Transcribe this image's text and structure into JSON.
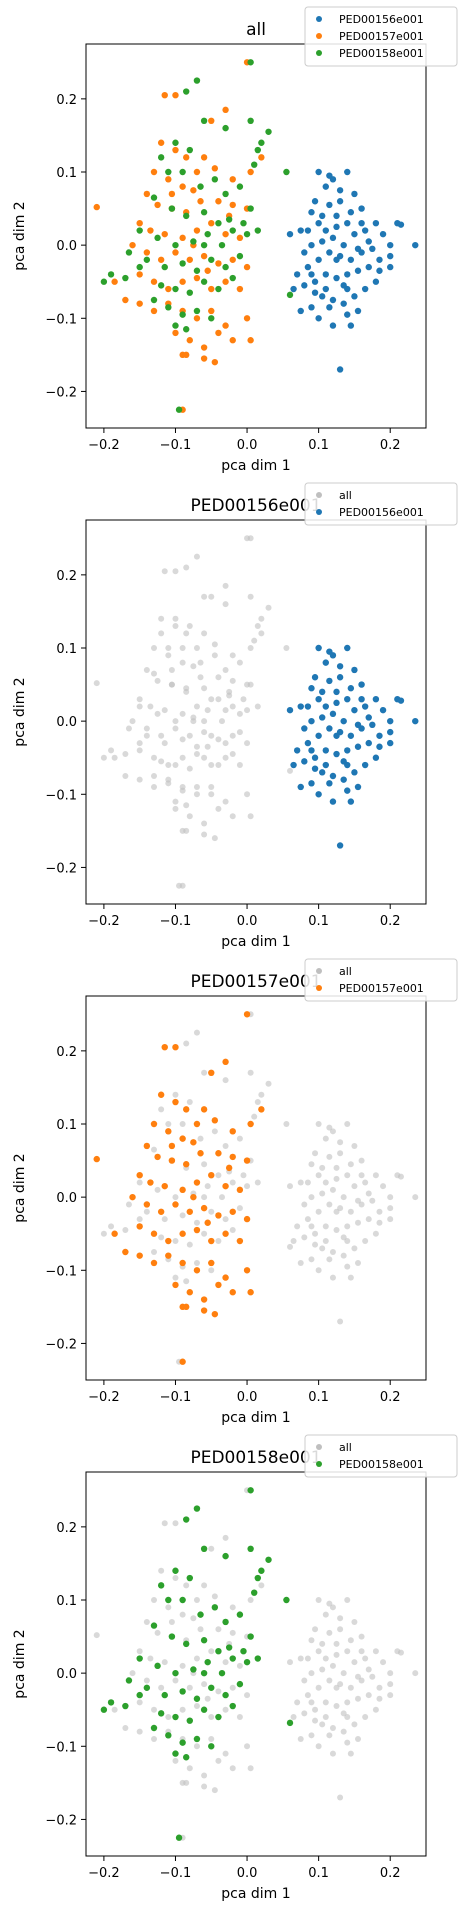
{
  "chart_data": [
    {
      "type": "scatter",
      "title": "all",
      "xlabel": "pca dim 1",
      "ylabel": "pca dim 2",
      "xlim": [
        -0.225,
        0.25
      ],
      "ylim": [
        -0.25,
        0.275
      ],
      "xticks": [
        "−0.2",
        "−0.1",
        "0.0",
        "0.1",
        "0.2"
      ],
      "yticks": [
        "−0.2",
        "−0.1",
        "0.0",
        "0.1",
        "0.2"
      ],
      "legend": {
        "location": "top-right",
        "entries": [
          "PED00156e001",
          "PED00157e001",
          "PED00158e001"
        ]
      },
      "highlight": "all"
    },
    {
      "type": "scatter",
      "title": "PED00156e001",
      "xlabel": "pca dim 1",
      "ylabel": "pca dim 2",
      "xlim": [
        -0.225,
        0.25
      ],
      "ylim": [
        -0.25,
        0.275
      ],
      "xticks": [
        "−0.2",
        "−0.1",
        "0.0",
        "0.1",
        "0.2"
      ],
      "yticks": [
        "−0.2",
        "−0.1",
        "0.0",
        "0.1",
        "0.2"
      ],
      "legend": {
        "location": "top-right",
        "entries": [
          "all",
          "PED00156e001"
        ]
      },
      "highlight": "PED00156e001"
    },
    {
      "type": "scatter",
      "title": "PED00157e001",
      "xlabel": "pca dim 1",
      "ylabel": "pca dim 2",
      "xlim": [
        -0.225,
        0.25
      ],
      "ylim": [
        -0.25,
        0.275
      ],
      "xticks": [
        "−0.2",
        "−0.1",
        "0.0",
        "0.1",
        "0.2"
      ],
      "yticks": [
        "−0.2",
        "−0.1",
        "0.0",
        "0.1",
        "0.2"
      ],
      "legend": {
        "location": "top-right",
        "entries": [
          "all",
          "PED00157e001"
        ]
      },
      "highlight": "PED00157e001"
    },
    {
      "type": "scatter",
      "title": "PED00158e001",
      "xlabel": "pca dim 1",
      "ylabel": "pca dim 2",
      "xlim": [
        -0.225,
        0.25
      ],
      "ylim": [
        -0.25,
        0.275
      ],
      "xticks": [
        "−0.2",
        "−0.1",
        "0.0",
        "0.1",
        "0.2"
      ],
      "yticks": [
        "−0.2",
        "−0.1",
        "0.0",
        "0.1",
        "0.2"
      ],
      "legend": {
        "location": "top-right",
        "entries": [
          "all",
          "PED00158e001"
        ]
      },
      "highlight": "PED00158e001"
    }
  ],
  "series": [
    {
      "name": "PED00156e001",
      "color": "#1f77b4",
      "points": [
        [
          0.1,
          0.1
        ],
        [
          0.12,
          0.09
        ],
        [
          0.14,
          0.1
        ],
        [
          0.11,
          0.08
        ],
        [
          0.095,
          0.06
        ],
        [
          0.115,
          0.055
        ],
        [
          0.13,
          0.06
        ],
        [
          0.15,
          0.07
        ],
        [
          0.16,
          0.05
        ],
        [
          0.125,
          0.04
        ],
        [
          0.14,
          0.03
        ],
        [
          0.1,
          0.03
        ],
        [
          0.085,
          0.02
        ],
        [
          0.11,
          0.02
        ],
        [
          0.075,
          0.02
        ],
        [
          0.06,
          0.015
        ],
        [
          0.09,
          0.0
        ],
        [
          0.105,
          0.005
        ],
        [
          0.12,
          0.01
        ],
        [
          0.135,
          0.0
        ],
        [
          0.15,
          0.015
        ],
        [
          0.165,
          0.02
        ],
        [
          0.18,
          0.03
        ],
        [
          0.2,
          0.0
        ],
        [
          0.21,
          0.03
        ],
        [
          0.215,
          0.028
        ],
        [
          0.235,
          0.0
        ],
        [
          0.19,
          0.015
        ],
        [
          0.175,
          -0.005
        ],
        [
          0.16,
          -0.01
        ],
        [
          0.145,
          -0.02
        ],
        [
          0.13,
          -0.015
        ],
        [
          0.115,
          -0.01
        ],
        [
          0.1,
          -0.02
        ],
        [
          0.085,
          -0.03
        ],
        [
          0.07,
          -0.04
        ],
        [
          0.065,
          -0.06
        ],
        [
          0.08,
          -0.055
        ],
        [
          0.095,
          -0.05
        ],
        [
          0.11,
          -0.04
        ],
        [
          0.125,
          -0.045
        ],
        [
          0.14,
          -0.04
        ],
        [
          0.155,
          -0.035
        ],
        [
          0.17,
          -0.03
        ],
        [
          0.185,
          -0.02
        ],
        [
          0.2,
          -0.015
        ],
        [
          0.18,
          -0.05
        ],
        [
          0.165,
          -0.06
        ],
        [
          0.15,
          -0.07
        ],
        [
          0.135,
          -0.08
        ],
        [
          0.12,
          -0.075
        ],
        [
          0.105,
          -0.07
        ],
        [
          0.09,
          -0.085
        ],
        [
          0.075,
          -0.09
        ],
        [
          0.1,
          -0.1
        ],
        [
          0.12,
          -0.11
        ],
        [
          0.14,
          -0.095
        ],
        [
          0.155,
          -0.09
        ],
        [
          0.145,
          -0.11
        ],
        [
          0.13,
          -0.17
        ],
        [
          0.09,
          -0.04
        ],
        [
          0.11,
          -0.06
        ],
        [
          0.125,
          -0.02
        ],
        [
          0.14,
          -0.06
        ],
        [
          0.16,
          0.03
        ],
        [
          0.145,
          0.045
        ],
        [
          0.105,
          0.04
        ],
        [
          0.09,
          0.045
        ],
        [
          0.17,
          0.005
        ],
        [
          0.185,
          -0.035
        ],
        [
          0.095,
          -0.065
        ],
        [
          0.115,
          -0.085
        ],
        [
          0.135,
          -0.055
        ],
        [
          0.155,
          -0.005
        ],
        [
          0.125,
          0.025
        ],
        [
          0.08,
          -0.01
        ],
        [
          0.13,
          0.075
        ],
        [
          0.115,
          0.095
        ],
        [
          0.2,
          -0.03
        ]
      ]
    },
    {
      "name": "PED00157e001",
      "color": "#ff7f0e",
      "points": [
        [
          -0.21,
          0.052
        ],
        [
          -0.115,
          0.205
        ],
        [
          -0.1,
          0.205
        ],
        [
          -0.03,
          0.185
        ],
        [
          -0.05,
          0.17
        ],
        [
          0.0,
          0.25
        ],
        [
          -0.12,
          0.14
        ],
        [
          -0.1,
          0.13
        ],
        [
          -0.085,
          0.12
        ],
        [
          -0.07,
          0.1
        ],
        [
          -0.13,
          0.1
        ],
        [
          -0.11,
          0.09
        ],
        [
          -0.09,
          0.08
        ],
        [
          -0.075,
          0.075
        ],
        [
          -0.06,
          0.12
        ],
        [
          -0.045,
          0.105
        ],
        [
          -0.02,
          0.09
        ],
        [
          0.005,
          0.1
        ],
        [
          0.02,
          0.12
        ],
        [
          -0.14,
          0.07
        ],
        [
          -0.125,
          0.055
        ],
        [
          -0.105,
          0.05
        ],
        [
          -0.085,
          0.045
        ],
        [
          -0.065,
          0.06
        ],
        [
          -0.04,
          0.06
        ],
        [
          -0.02,
          0.055
        ],
        [
          0.0,
          0.05
        ],
        [
          -0.15,
          0.03
        ],
        [
          -0.135,
          0.02
        ],
        [
          -0.115,
          0.015
        ],
        [
          -0.09,
          0.01
        ],
        [
          -0.07,
          0.02
        ],
        [
          -0.05,
          0.03
        ],
        [
          -0.03,
          0.015
        ],
        [
          -0.01,
          0.01
        ],
        [
          -0.16,
          0.0
        ],
        [
          -0.14,
          -0.01
        ],
        [
          -0.12,
          -0.02
        ],
        [
          -0.1,
          -0.01
        ],
        [
          -0.08,
          -0.02
        ],
        [
          -0.06,
          -0.015
        ],
        [
          -0.04,
          -0.025
        ],
        [
          -0.02,
          -0.02
        ],
        [
          0.0,
          -0.03
        ],
        [
          -0.15,
          -0.04
        ],
        [
          -0.13,
          -0.05
        ],
        [
          -0.11,
          -0.06
        ],
        [
          -0.09,
          -0.05
        ],
        [
          -0.07,
          -0.045
        ],
        [
          -0.05,
          -0.06
        ],
        [
          -0.03,
          -0.05
        ],
        [
          -0.01,
          -0.06
        ],
        [
          -0.17,
          -0.075
        ],
        [
          -0.15,
          -0.08
        ],
        [
          -0.13,
          -0.09
        ],
        [
          -0.11,
          -0.08
        ],
        [
          -0.09,
          -0.09
        ],
        [
          -0.07,
          -0.1
        ],
        [
          -0.05,
          -0.09
        ],
        [
          -0.03,
          -0.11
        ],
        [
          0.0,
          -0.1
        ],
        [
          -0.1,
          -0.12
        ],
        [
          -0.08,
          -0.13
        ],
        [
          -0.06,
          -0.14
        ],
        [
          -0.04,
          -0.12
        ],
        [
          -0.02,
          -0.13
        ],
        [
          0.005,
          -0.13
        ],
        [
          -0.09,
          -0.15
        ],
        [
          -0.085,
          -0.15
        ],
        [
          -0.06,
          -0.155
        ],
        [
          -0.045,
          -0.16
        ],
        [
          -0.09,
          -0.225
        ],
        [
          -0.185,
          -0.05
        ],
        [
          -0.075,
          0.0
        ],
        [
          -0.055,
          -0.035
        ],
        [
          -0.025,
          0.04
        ],
        [
          -0.105,
          0.07
        ]
      ]
    },
    {
      "name": "PED00158e001",
      "color": "#2ca02c",
      "points": [
        [
          0.005,
          0.25
        ],
        [
          -0.07,
          0.225
        ],
        [
          -0.085,
          0.21
        ],
        [
          -0.06,
          0.17
        ],
        [
          -0.03,
          0.16
        ],
        [
          0.005,
          0.17
        ],
        [
          0.03,
          0.155
        ],
        [
          0.015,
          0.13
        ],
        [
          0.02,
          0.14
        ],
        [
          0.055,
          0.1
        ],
        [
          -0.1,
          0.14
        ],
        [
          -0.08,
          0.13
        ],
        [
          -0.12,
          0.12
        ],
        [
          -0.11,
          0.1
        ],
        [
          -0.09,
          0.1
        ],
        [
          -0.065,
          0.08
        ],
        [
          -0.045,
          0.09
        ],
        [
          -0.03,
          0.07
        ],
        [
          -0.01,
          0.08
        ],
        [
          0.01,
          0.11
        ],
        [
          -0.13,
          0.065
        ],
        [
          -0.105,
          0.05
        ],
        [
          -0.085,
          0.04
        ],
        [
          -0.06,
          0.045
        ],
        [
          -0.04,
          0.03
        ],
        [
          -0.025,
          0.035
        ],
        [
          -0.005,
          0.03
        ],
        [
          0.015,
          0.02
        ],
        [
          -0.15,
          0.02
        ],
        [
          -0.125,
          0.01
        ],
        [
          -0.1,
          0.0
        ],
        [
          -0.075,
          0.005
        ],
        [
          -0.055,
          0.015
        ],
        [
          -0.035,
          0.0
        ],
        [
          -0.02,
          0.02
        ],
        [
          0.0,
          0.015
        ],
        [
          -0.165,
          -0.01
        ],
        [
          -0.14,
          -0.02
        ],
        [
          -0.115,
          -0.03
        ],
        [
          -0.09,
          -0.025
        ],
        [
          -0.07,
          -0.035
        ],
        [
          -0.05,
          -0.02
        ],
        [
          -0.03,
          -0.03
        ],
        [
          -0.01,
          -0.015
        ],
        [
          -0.19,
          -0.04
        ],
        [
          -0.2,
          -0.05
        ],
        [
          -0.17,
          -0.045
        ],
        [
          -0.12,
          -0.055
        ],
        [
          -0.1,
          -0.06
        ],
        [
          -0.08,
          -0.065
        ],
        [
          -0.06,
          -0.05
        ],
        [
          -0.04,
          -0.06
        ],
        [
          -0.13,
          -0.075
        ],
        [
          -0.11,
          -0.085
        ],
        [
          -0.09,
          -0.095
        ],
        [
          -0.07,
          -0.09
        ],
        [
          -0.05,
          -0.1
        ],
        [
          -0.1,
          -0.11
        ],
        [
          -0.085,
          -0.115
        ],
        [
          -0.095,
          -0.225
        ],
        [
          0.06,
          -0.068
        ],
        [
          -0.02,
          -0.045
        ],
        [
          -0.06,
          0.0
        ],
        [
          0.005,
          0.05
        ],
        [
          -0.15,
          -0.03
        ]
      ]
    }
  ]
}
